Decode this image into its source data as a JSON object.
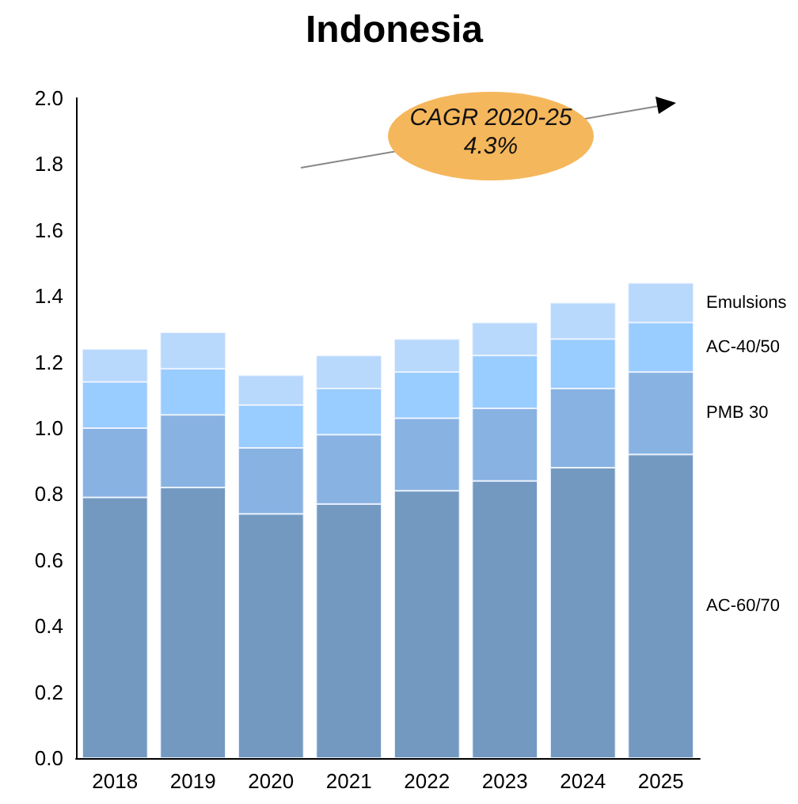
{
  "chart_data": {
    "type": "bar",
    "title": "Indonesia",
    "stacked": true,
    "categories": [
      "2018",
      "2019",
      "2020",
      "2021",
      "2022",
      "2023",
      "2024",
      "2025"
    ],
    "series": [
      {
        "name": "AC-60/70",
        "color": "#7399c0",
        "values": [
          0.79,
          0.82,
          0.74,
          0.77,
          0.81,
          0.84,
          0.88,
          0.92
        ]
      },
      {
        "name": "PMB 30",
        "color": "#88b2e2",
        "values": [
          0.21,
          0.22,
          0.2,
          0.21,
          0.22,
          0.22,
          0.24,
          0.25
        ]
      },
      {
        "name": "AC-40/50",
        "color": "#99ccff",
        "values": [
          0.14,
          0.14,
          0.13,
          0.14,
          0.14,
          0.16,
          0.15,
          0.15
        ]
      },
      {
        "name": "Emulsions",
        "color": "#b8d8fc",
        "values": [
          0.1,
          0.11,
          0.09,
          0.1,
          0.1,
          0.1,
          0.11,
          0.12
        ]
      }
    ],
    "ylim": [
      0,
      2
    ],
    "yticks": [
      {
        "value": 0,
        "label": "0.0"
      },
      {
        "value": 0.2,
        "label": "0.2"
      },
      {
        "value": 0.4,
        "label": "0.4"
      },
      {
        "value": 0.6,
        "label": "0.6"
      },
      {
        "value": 0.8,
        "label": "0.8"
      },
      {
        "value": 1,
        "label": "1.0"
      },
      {
        "value": 1.2,
        "label": "1.2"
      },
      {
        "value": 1.4,
        "label": "1.4"
      },
      {
        "value": 1.6,
        "label": "1.6"
      },
      {
        "value": 1.8,
        "label": "1.8"
      },
      {
        "value": 2,
        "label": "2.0"
      }
    ],
    "grid": false,
    "annotations": [
      "CAGR 2020-25\n4.3%"
    ]
  }
}
